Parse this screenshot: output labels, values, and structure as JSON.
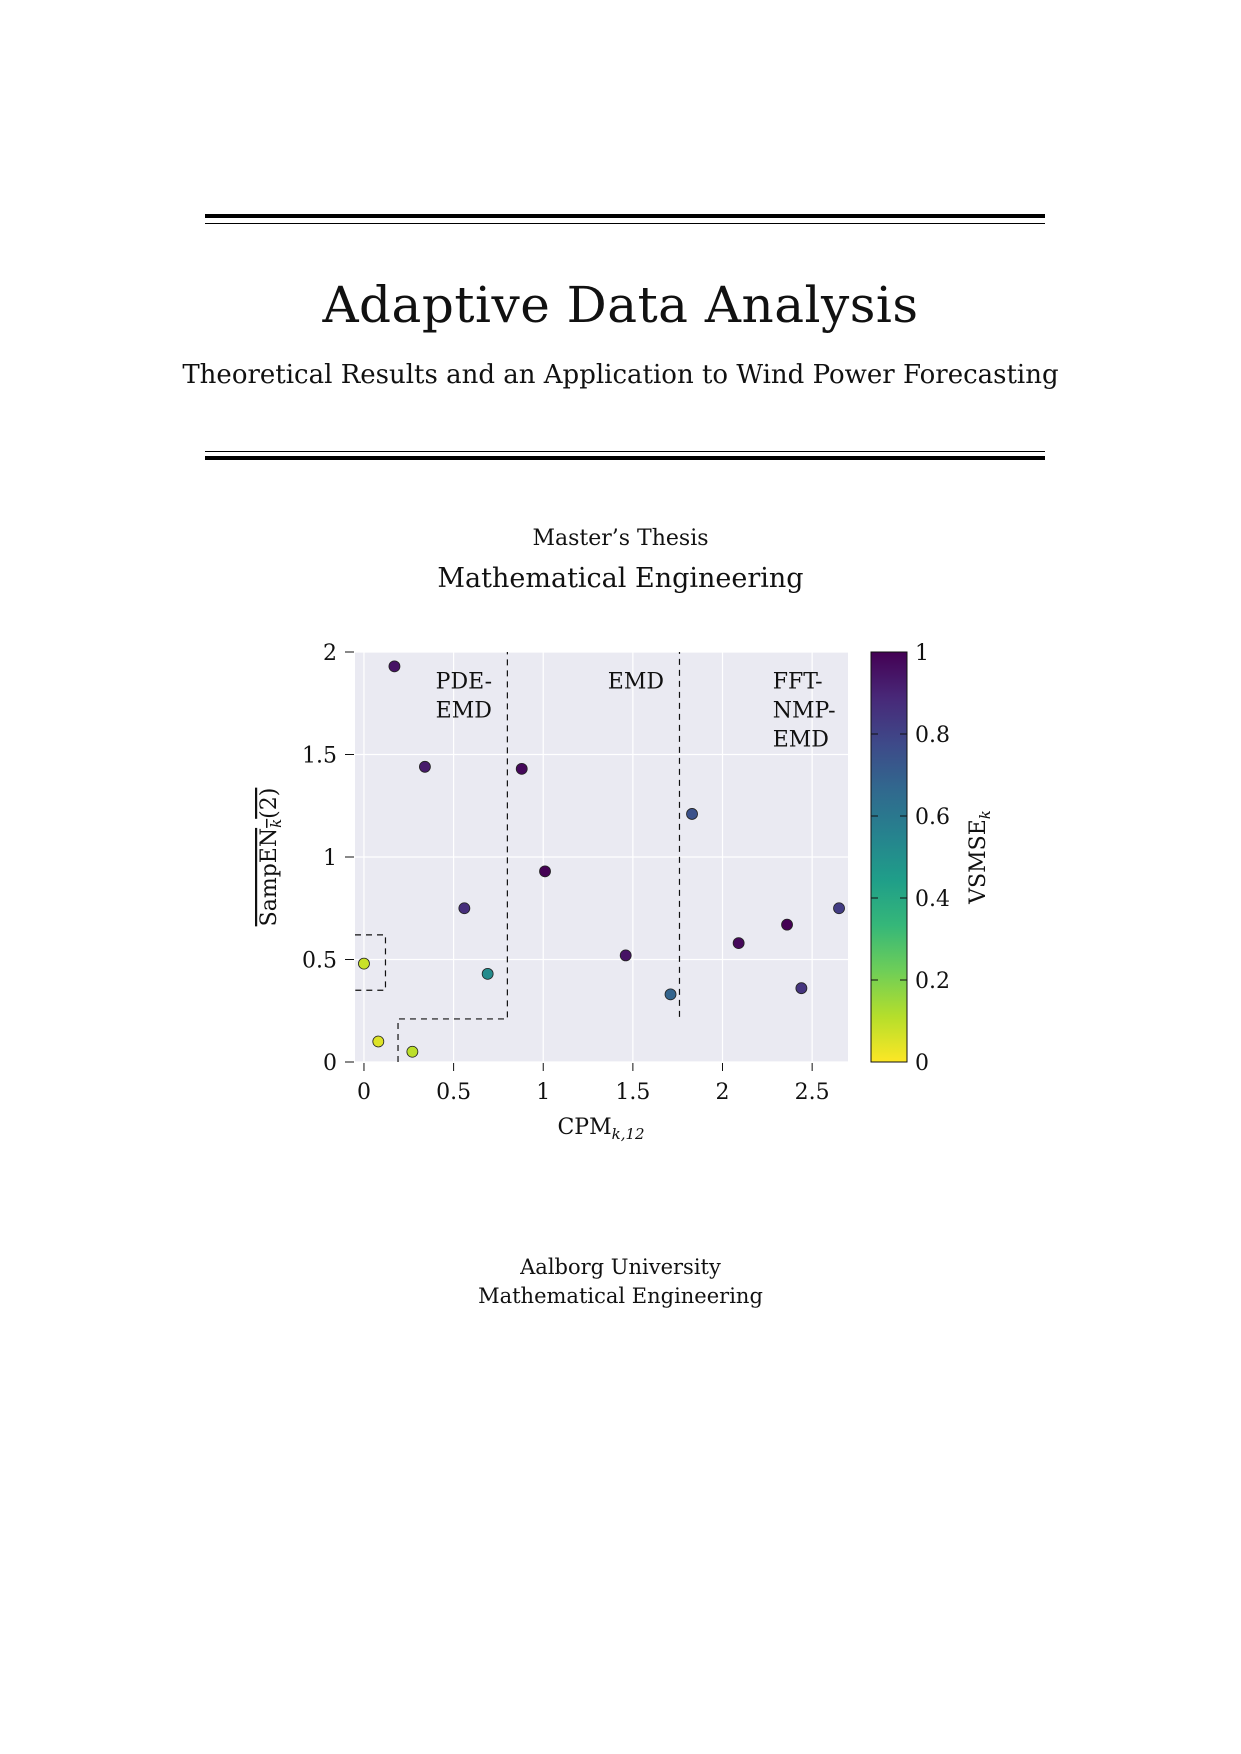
{
  "title": "Adaptive Data Analysis",
  "subtitle": "Theoretical Results and an Application to Wind Power Forecasting",
  "thesis_type": "Master’s Thesis",
  "thesis_field": "Mathematical Engineering",
  "university": "Aalborg University",
  "department": "Mathematical Engineering",
  "chart_data": {
    "type": "scatter",
    "xlabel": "CPM",
    "xlabel_sub": "k,12",
    "ylabel": "SampEN",
    "ylabel_sub": "k",
    "ylabel_suffix": "(2)",
    "xlim": [
      -0.05,
      2.7
    ],
    "ylim": [
      0,
      2
    ],
    "xticks": [
      0,
      0.5,
      1,
      1.5,
      2,
      2.5
    ],
    "xtick_labels": [
      "0",
      "0.5",
      "1",
      "1.5",
      "2",
      "2.5"
    ],
    "yticks": [
      0,
      0.5,
      1,
      1.5,
      2
    ],
    "ytick_labels": [
      "0",
      "0.5",
      "1",
      "1.5",
      "2"
    ],
    "grid": true,
    "points": [
      {
        "x": 0.0,
        "y": 0.48,
        "c": 0.08
      },
      {
        "x": 0.08,
        "y": 0.1,
        "c": 0.05
      },
      {
        "x": 0.27,
        "y": 0.05,
        "c": 0.1
      },
      {
        "x": 0.17,
        "y": 1.93,
        "c": 0.95
      },
      {
        "x": 0.34,
        "y": 1.44,
        "c": 0.93
      },
      {
        "x": 0.56,
        "y": 0.75,
        "c": 0.87
      },
      {
        "x": 0.69,
        "y": 0.43,
        "c": 0.52
      },
      {
        "x": 0.88,
        "y": 1.43,
        "c": 0.98
      },
      {
        "x": 1.01,
        "y": 0.93,
        "c": 1.0
      },
      {
        "x": 1.46,
        "y": 0.52,
        "c": 0.95
      },
      {
        "x": 1.71,
        "y": 0.33,
        "c": 0.68
      },
      {
        "x": 1.83,
        "y": 1.21,
        "c": 0.75
      },
      {
        "x": 2.09,
        "y": 0.58,
        "c": 0.98
      },
      {
        "x": 2.36,
        "y": 0.67,
        "c": 1.0
      },
      {
        "x": 2.44,
        "y": 0.36,
        "c": 0.85
      },
      {
        "x": 2.65,
        "y": 0.75,
        "c": 0.82
      }
    ],
    "regions": [
      {
        "label_lines": [
          "PDE-",
          "EMD"
        ],
        "label_pos": [
          0.4,
          1.9
        ]
      },
      {
        "label_lines": [
          "EMD"
        ],
        "label_pos": [
          1.36,
          1.9
        ]
      },
      {
        "label_lines": [
          "FFT-",
          "NMP-",
          "EMD"
        ],
        "label_pos": [
          2.28,
          1.9
        ]
      }
    ],
    "dashed_paths": [
      [
        [
          0.19,
          0
        ],
        [
          0.19,
          0.21
        ],
        [
          0.8,
          0.21
        ],
        [
          0.8,
          2.0
        ]
      ],
      [
        [
          1.76,
          0.22
        ],
        [
          1.76,
          2.0
        ]
      ],
      [
        [
          -0.05,
          0.62
        ],
        [
          0.12,
          0.62
        ],
        [
          0.12,
          0.35
        ],
        [
          -0.05,
          0.35
        ]
      ]
    ],
    "colorbar": {
      "label": "VSMSE",
      "label_sub": "k",
      "range": [
        0,
        1
      ],
      "ticks": [
        0,
        0.2,
        0.4,
        0.6,
        0.8,
        1
      ],
      "tick_labels": [
        "0",
        "0.2",
        "0.4",
        "0.6",
        "0.8",
        "1"
      ],
      "colormap": "viridis_r",
      "stops": [
        "#fde725",
        "#b5de2b",
        "#6ece58",
        "#35b779",
        "#1f9e89",
        "#26828e",
        "#31688e",
        "#3e4989",
        "#482878",
        "#440154"
      ]
    },
    "background_color": "#eaeaf2",
    "marker_edge_color": "#222222"
  }
}
